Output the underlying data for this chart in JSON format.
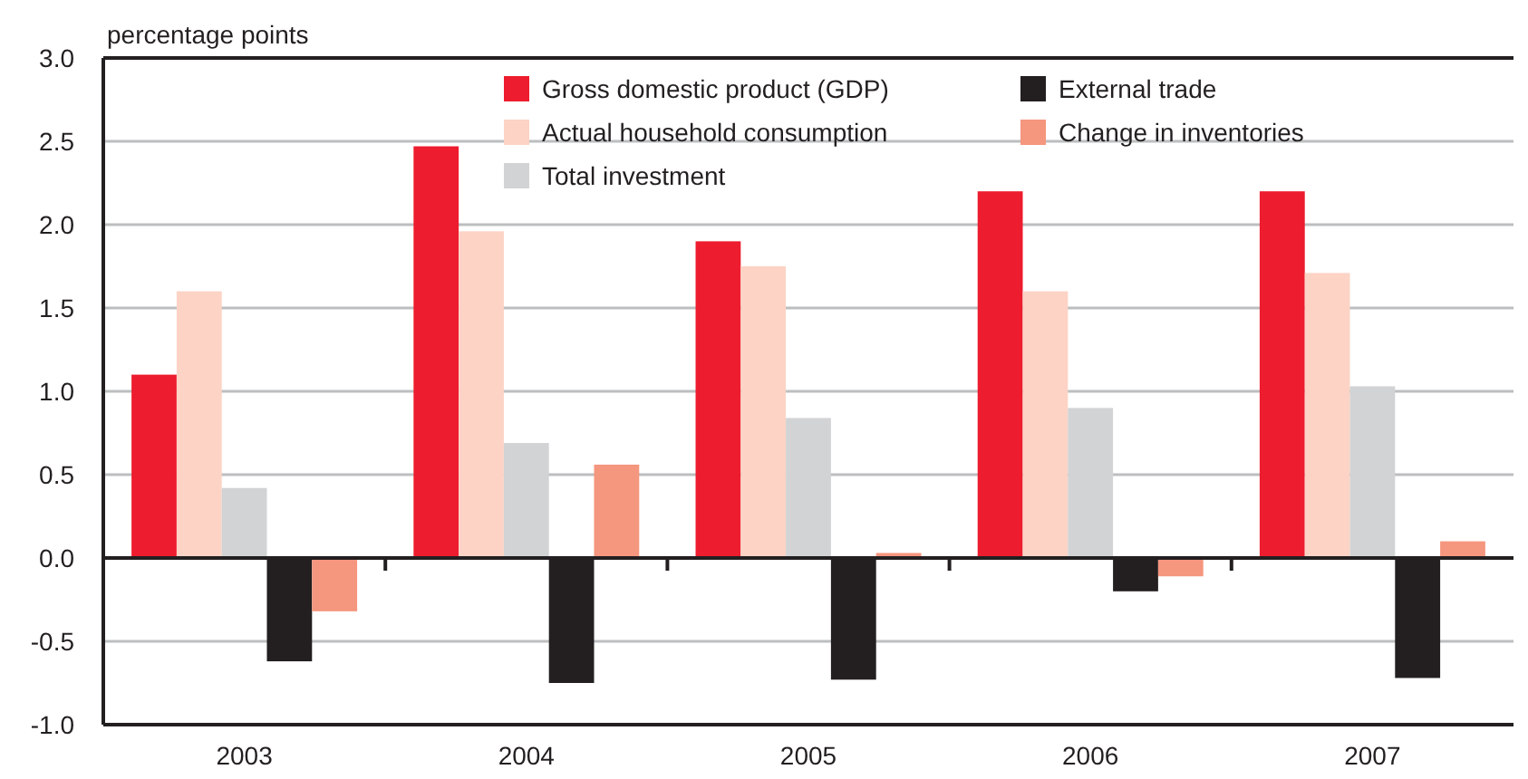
{
  "chart_data": {
    "type": "bar",
    "ylabel": "percentage points",
    "categories": [
      "2003",
      "2004",
      "2005",
      "2006",
      "2007"
    ],
    "series": [
      {
        "name": "Gross domestic product (GDP)",
        "color": "#ed1c2e",
        "values": [
          1.1,
          2.47,
          1.9,
          2.2,
          2.2
        ]
      },
      {
        "name": "Actual household consumption",
        "color": "#fcd3c5",
        "values": [
          1.6,
          1.96,
          1.75,
          1.6,
          1.71
        ]
      },
      {
        "name": "Total investment",
        "color": "#d1d3d4",
        "values": [
          0.42,
          0.69,
          0.84,
          0.9,
          1.03
        ]
      },
      {
        "name": "External trade",
        "color": "#231f20",
        "values": [
          -0.62,
          -0.75,
          -0.73,
          -0.2,
          -0.72
        ]
      },
      {
        "name": "Change in inventories",
        "color": "#f5967e",
        "values": [
          -0.32,
          0.56,
          0.03,
          -0.11,
          0.1
        ]
      }
    ],
    "ylim": [
      -1,
      3
    ],
    "yticks": [
      {
        "value": -1,
        "label": "-1.0"
      },
      {
        "value": -0.5,
        "label": "-0.5"
      },
      {
        "value": 0,
        "label": "0.0"
      },
      {
        "value": 0.5,
        "label": "0.5"
      },
      {
        "value": 1,
        "label": "1.0"
      },
      {
        "value": 1.5,
        "label": "1.5"
      },
      {
        "value": 2,
        "label": "2.0"
      },
      {
        "value": 2.5,
        "label": "2.5"
      },
      {
        "value": 3,
        "label": "3.0"
      }
    ],
    "grid": "y",
    "legend": "top"
  }
}
